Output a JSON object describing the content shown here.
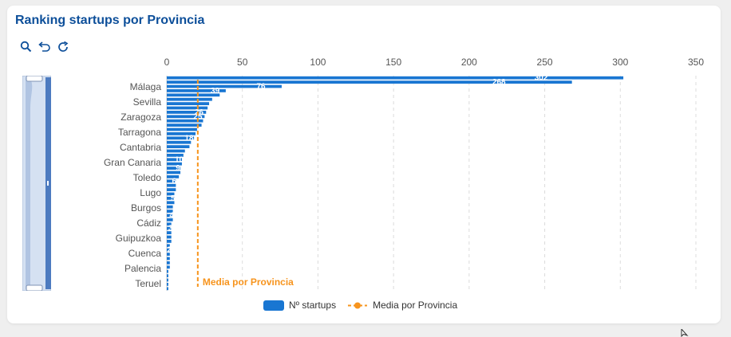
{
  "title": "Ranking startups por Provincia",
  "toolbar": {
    "icons": [
      "search-icon",
      "undo-icon",
      "refresh-icon"
    ]
  },
  "colors": {
    "bar": "#1976d2",
    "mean": "#f7941d",
    "title": "#0d4f9a"
  },
  "legend": {
    "bar_label": "Nº startups",
    "mean_label": "Media por Provincia"
  },
  "chart_data": {
    "type": "bar",
    "orientation": "horizontal",
    "title": "Ranking startups por Provincia",
    "xlim": [
      0,
      350
    ],
    "x_ticks": [
      0,
      50,
      100,
      150,
      200,
      250,
      300,
      350
    ],
    "category_labels_visible": [
      "Málaga",
      "Sevilla",
      "Zaragoza",
      "Tarragona",
      "Cantabria",
      "Gran Canaria",
      "Toledo",
      "Lugo",
      "Burgos",
      "Cádiz",
      "Guipuzkoa",
      "Cuenca",
      "Palencia",
      "Teruel"
    ],
    "series": [
      {
        "name": "Nº startups",
        "values": [
          302,
          268,
          76,
          39,
          35,
          30,
          28,
          27,
          26,
          25,
          24,
          23,
          20,
          19,
          18,
          16,
          15,
          12,
          11,
          10,
          10,
          9,
          9,
          8,
          6,
          6,
          6,
          5,
          5,
          5,
          4,
          4,
          4,
          4,
          3,
          3,
          3,
          3,
          3,
          2,
          2,
          2,
          2,
          2,
          2,
          1,
          1,
          1,
          1,
          1
        ],
        "data_labels": {
          "0": "302",
          "1": "268",
          "2": "76",
          "3": "39",
          "8": "26",
          "9": "25",
          "14": "18",
          "19": "10",
          "21": "9",
          "24": "6",
          "28": "5",
          "32": "4",
          "35": "3",
          "40": "2"
        }
      },
      {
        "name": "Media por Provincia",
        "value": 20.5,
        "label": "Media por Provincia"
      }
    ],
    "grid": "vertical dashed",
    "legend_position": "bottom"
  }
}
